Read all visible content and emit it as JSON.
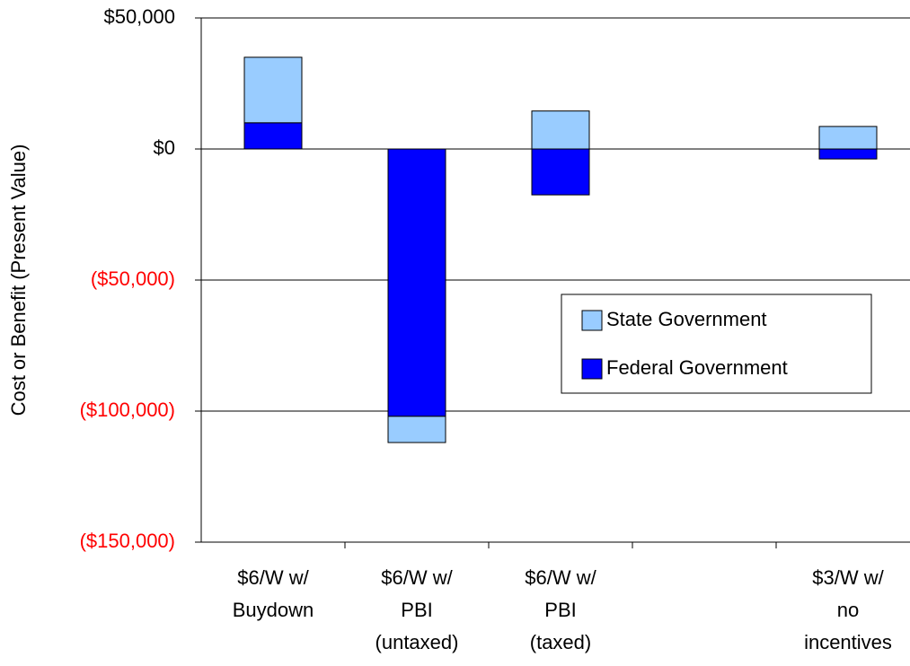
{
  "chart_data": {
    "type": "stacked_bar",
    "y_axis_label": "Cost or Benefit (Present Value)",
    "categories": [
      "$6/W w/\nBuydown",
      "$6/W w/\nPBI\n(untaxed)",
      "$6/W w/\nPBI\n(taxed)",
      null,
      "$3/W w/\nno\nincentives"
    ],
    "series": [
      {
        "name": "State Government",
        "color": "#99ccff",
        "values": [
          25000,
          -10000,
          14500,
          null,
          8600
        ]
      },
      {
        "name": "Federal Government",
        "color": "#0000ff",
        "values": [
          10000,
          -102000,
          -17500,
          null,
          -3800
        ]
      }
    ],
    "ylim": [
      -150000,
      50000
    ],
    "yticks": [
      {
        "value": -150000,
        "label": "($150,000)"
      },
      {
        "value": -100000,
        "label": "($100,000)"
      },
      {
        "value": -50000,
        "label": "($50,000)"
      },
      {
        "value": 0,
        "label": "$0"
      },
      {
        "value": 50000,
        "label": "$50,000"
      }
    ],
    "negative_tick_label_color": "#ff0000",
    "grid": true,
    "legend_position": "right"
  }
}
